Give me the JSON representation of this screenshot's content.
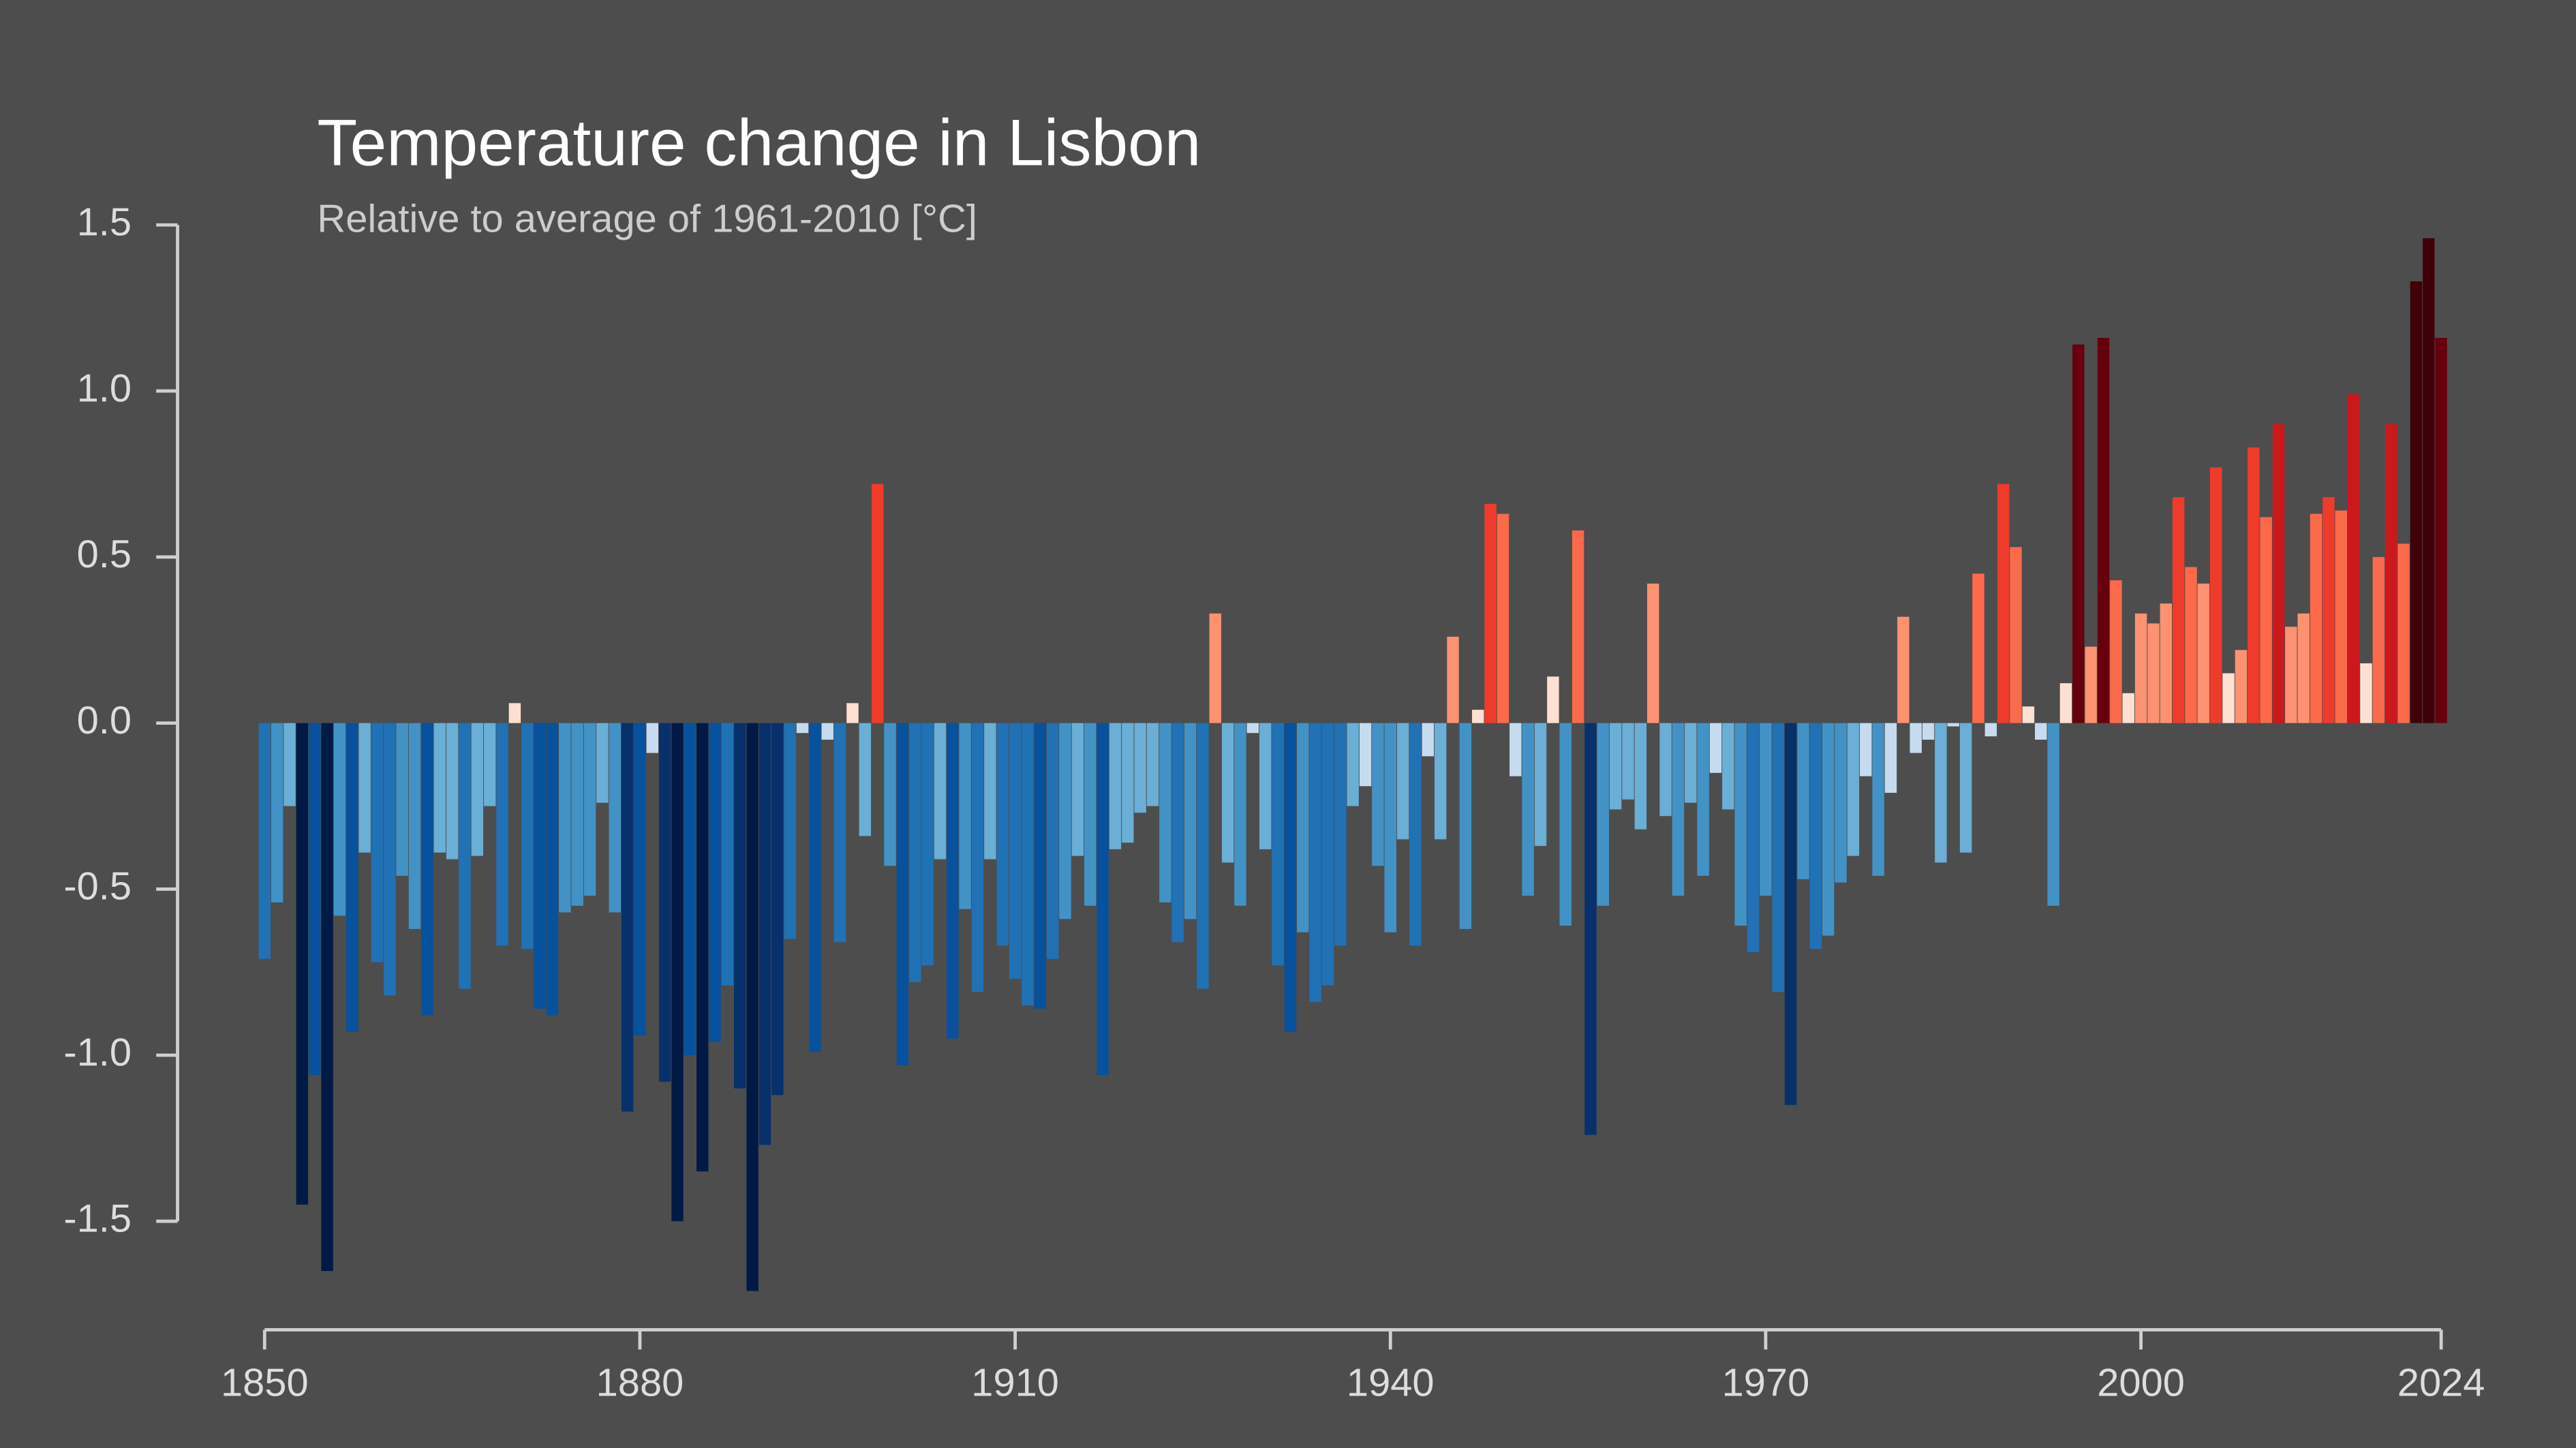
{
  "chart_data": {
    "type": "bar",
    "title": "Temperature change in Lisbon",
    "subtitle": "Relative to average of 1961-2010  [°C]",
    "x": [
      1850,
      1851,
      1852,
      1853,
      1854,
      1855,
      1856,
      1857,
      1858,
      1859,
      1860,
      1861,
      1862,
      1863,
      1864,
      1865,
      1866,
      1867,
      1868,
      1869,
      1870,
      1871,
      1872,
      1873,
      1874,
      1875,
      1876,
      1877,
      1878,
      1879,
      1880,
      1881,
      1882,
      1883,
      1884,
      1885,
      1886,
      1887,
      1888,
      1889,
      1890,
      1891,
      1892,
      1893,
      1894,
      1895,
      1896,
      1897,
      1898,
      1899,
      1900,
      1901,
      1902,
      1903,
      1904,
      1905,
      1906,
      1907,
      1908,
      1909,
      1910,
      1911,
      1912,
      1913,
      1914,
      1915,
      1916,
      1917,
      1918,
      1919,
      1920,
      1921,
      1922,
      1923,
      1924,
      1925,
      1926,
      1927,
      1928,
      1929,
      1930,
      1931,
      1932,
      1933,
      1934,
      1935,
      1936,
      1937,
      1938,
      1939,
      1940,
      1941,
      1942,
      1943,
      1944,
      1945,
      1946,
      1947,
      1948,
      1949,
      1950,
      1951,
      1952,
      1953,
      1954,
      1955,
      1956,
      1957,
      1958,
      1959,
      1960,
      1961,
      1962,
      1963,
      1964,
      1965,
      1966,
      1967,
      1968,
      1969,
      1970,
      1971,
      1972,
      1973,
      1974,
      1975,
      1976,
      1977,
      1978,
      1979,
      1980,
      1981,
      1982,
      1983,
      1984,
      1985,
      1986,
      1987,
      1988,
      1989,
      1990,
      1991,
      1992,
      1993,
      1994,
      1995,
      1996,
      1997,
      1998,
      1999,
      2000,
      2001,
      2002,
      2003,
      2004,
      2005,
      2006,
      2007,
      2008,
      2009,
      2010,
      2011,
      2012,
      2013,
      2014,
      2015,
      2016,
      2017,
      2018,
      2019,
      2020,
      2021,
      2022,
      2023,
      2024
    ],
    "values": [
      -0.71,
      -0.54,
      -0.25,
      -1.45,
      -1.06,
      -1.65,
      -0.58,
      -0.93,
      -0.39,
      -0.72,
      -0.82,
      -0.46,
      -0.62,
      -0.88,
      -0.39,
      -0.41,
      -0.8,
      -0.4,
      -0.25,
      -0.67,
      0.06,
      -0.68,
      -0.86,
      -0.88,
      -0.57,
      -0.55,
      -0.52,
      -0.24,
      -0.57,
      -1.17,
      -0.94,
      -0.09,
      -1.08,
      -1.5,
      -1.0,
      -1.35,
      -0.96,
      -0.79,
      -1.1,
      -1.71,
      -1.27,
      -1.12,
      -0.65,
      -0.03,
      -0.99,
      -0.05,
      -0.66,
      0.06,
      -0.34,
      0.72,
      -0.43,
      -1.03,
      -0.78,
      -0.73,
      -0.41,
      -0.95,
      -0.56,
      -0.81,
      -0.41,
      -0.67,
      -0.77,
      -0.85,
      -0.86,
      -0.71,
      -0.59,
      -0.4,
      -0.55,
      -1.06,
      -0.38,
      -0.36,
      -0.27,
      -0.25,
      -0.54,
      -0.66,
      -0.59,
      -0.8,
      0.33,
      -0.42,
      -0.55,
      -0.03,
      -0.38,
      -0.73,
      -0.93,
      -0.63,
      -0.84,
      -0.79,
      -0.67,
      -0.25,
      -0.19,
      -0.43,
      -0.63,
      -0.35,
      -0.67,
      -0.1,
      -0.35,
      0.26,
      -0.62,
      0.04,
      0.66,
      0.63,
      -0.16,
      -0.52,
      -0.37,
      0.14,
      -0.61,
      0.58,
      -1.24,
      -0.55,
      -0.26,
      -0.23,
      -0.32,
      0.42,
      -0.28,
      -0.52,
      -0.24,
      -0.46,
      -0.15,
      -0.26,
      -0.61,
      -0.69,
      -0.52,
      -0.81,
      -1.15,
      -0.47,
      -0.68,
      -0.64,
      -0.48,
      -0.4,
      -0.16,
      -0.46,
      -0.21,
      0.32,
      -0.09,
      -0.05,
      -0.42,
      -0.01,
      -0.39,
      0.45,
      -0.04,
      0.72,
      0.53,
      0.05,
      -0.05,
      -0.55,
      0.12,
      1.14,
      0.23,
      1.16,
      0.43,
      0.09,
      0.33,
      0.3,
      0.36,
      0.68,
      0.47,
      0.42,
      0.77,
      0.15,
      0.22,
      0.83,
      0.62,
      0.9,
      0.29,
      0.33,
      0.63,
      0.68,
      0.64,
      0.99,
      0.18,
      0.5,
      0.9,
      0.54,
      1.33,
      1.46,
      1.16
    ],
    "colormap": [
      "#001a45",
      "#08306b",
      "#08519c",
      "#2171b5",
      "#4292c6",
      "#6baed6",
      "#c6dbef",
      "#fee0d2",
      "#fc9272",
      "#fb6a4a",
      "#ef3b2c",
      "#cb181d",
      "#67000d",
      "#400008"
    ],
    "xlim": [
      1850,
      2024
    ],
    "xticks": [
      1850,
      1880,
      1910,
      1940,
      1970,
      2000,
      2024
    ],
    "ylim": [
      -1.82,
      1.5
    ],
    "yticks": [
      {
        "value": -1.5,
        "label": "-1.5"
      },
      {
        "value": -1.0,
        "label": "-1.0"
      },
      -0.5,
      {
        "value": 0.0,
        "label": "0.0"
      },
      0.5,
      {
        "value": 1.0,
        "label": "1.0"
      },
      1.5
    ],
    "grid": false
  }
}
